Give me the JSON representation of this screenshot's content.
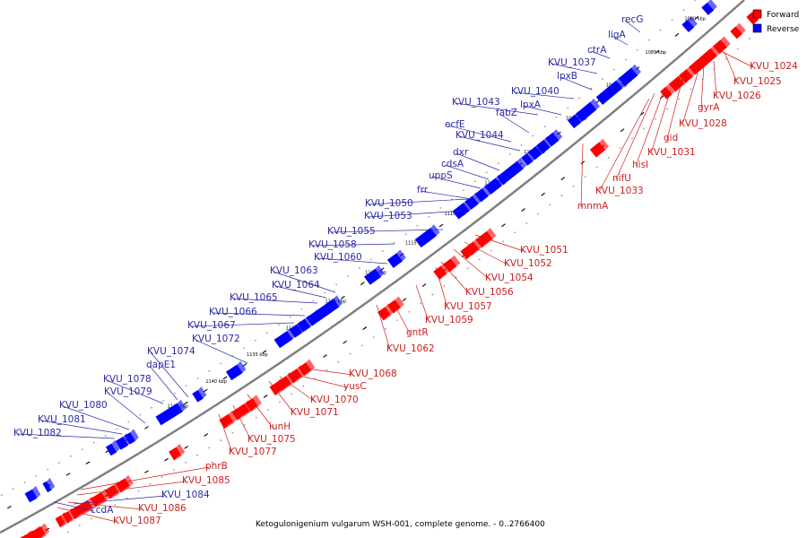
{
  "caption": "Ketogulonigenium vulgarum WSH-001, complete genome. - 0..2766400",
  "colors": {
    "forward": "#ff0000",
    "reverse": "#0000ff",
    "backbone": "#808080",
    "text": "#000000"
  },
  "legend": [
    {
      "label": "Forward",
      "color": "#ff0000"
    },
    {
      "label": "Reverse",
      "color": "#0000ff"
    }
  ],
  "ticks": [
    "1080 kbp",
    "1085 kbp",
    "1090 kbp",
    "1095 kbp",
    "1100 kbp",
    "1105 kbp",
    "1110 kbp",
    "1115 kbp",
    "1120 kbp",
    "1125 kbp",
    "1130 kbp",
    "1135 kbp",
    "1140 kbp",
    "1145 kbp"
  ],
  "reverse_genes": [
    "recG",
    "ligA",
    "ctrA",
    "KVU_1037",
    "lpxB",
    "KVU_1040",
    "lpxA",
    "KVU_1043",
    "fabZ",
    "ecfE",
    "KVU_1044",
    "dxr",
    "cdsA",
    "uppS",
    "frr",
    "KVU_1050",
    "KVU_1053",
    "KVU_1055",
    "KVU_1058",
    "KVU_1060",
    "KVU_1063",
    "KVU_1064",
    "KVU_1065",
    "KVU_1066",
    "KVU_1067",
    "KVU_1072",
    "KVU_1074",
    "dapE1",
    "KVU_1078",
    "KVU_1079",
    "KVU_1080",
    "KVU_1081",
    "KVU_1082",
    "KVU_1084",
    "ccdA"
  ],
  "forward_genes": [
    "KVU_1024",
    "KVU_1025",
    "KVU_1026",
    "gyrA",
    "KVU_1028",
    "gid",
    "KVU_1031",
    "hisI",
    "nifU",
    "KVU_1033",
    "mnmA",
    "KVU_1051",
    "KVU_1052",
    "KVU_1054",
    "KVU_1056",
    "KVU_1057",
    "KVU_1059",
    "gntR",
    "KVU_1062",
    "KVU_1068",
    "yusC",
    "KVU_1070",
    "KVU_1071",
    "iunH",
    "KVU_1075",
    "KVU_1077",
    "phrB",
    "KVU_1085",
    "KVU_1086",
    "KVU_1087"
  ]
}
